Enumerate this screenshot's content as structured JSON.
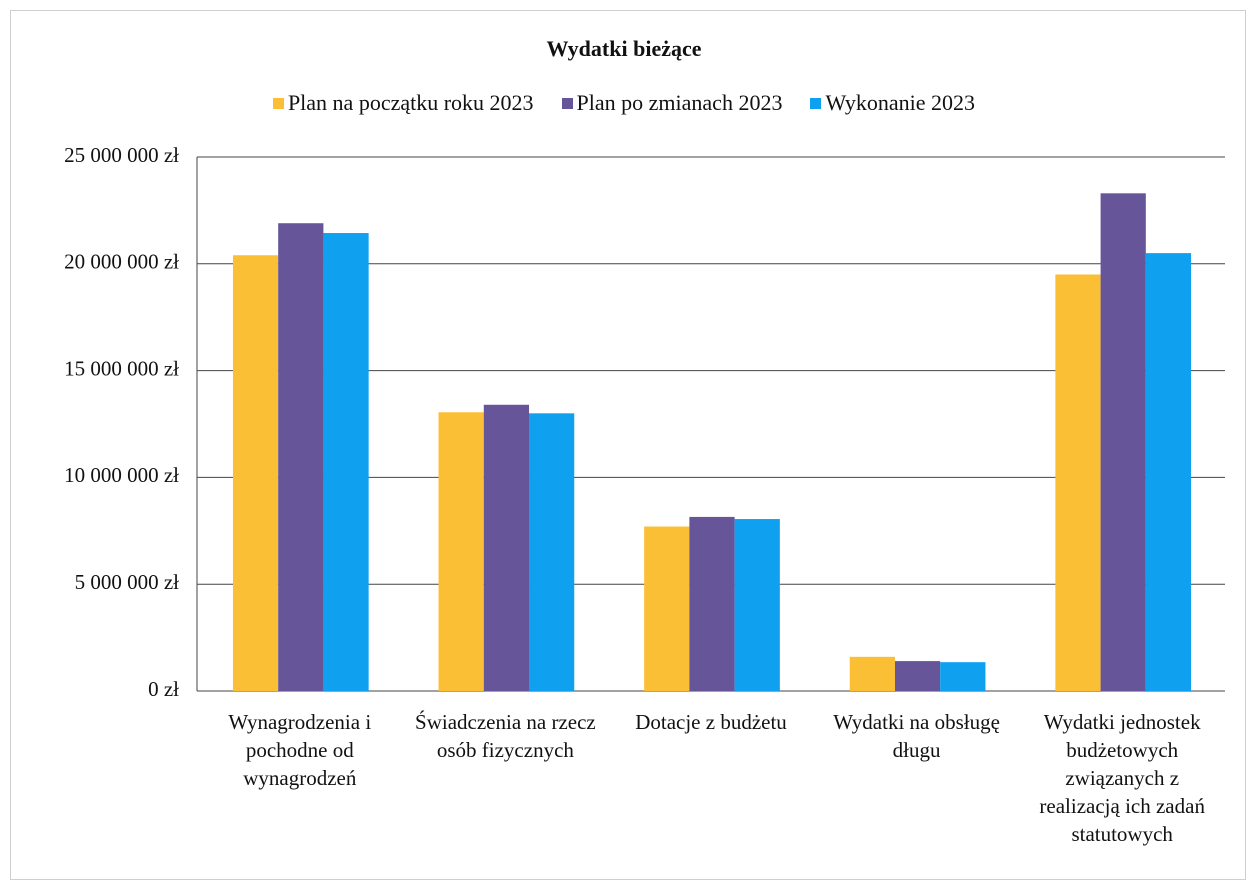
{
  "chart_data": {
    "type": "bar",
    "title": "Wydatki bieżące",
    "categories": [
      "Wynagrodzenia i pochodne od wynagrodzeń",
      "Świadczenia na rzecz osób fizycznych",
      "Dotacje z budżetu",
      "Wydatki na obsługę długu",
      "Wydatki jednostek budżetowych związanych z realizacją ich zadań statutowych"
    ],
    "series": [
      {
        "name": "Plan na początku roku 2023",
        "color": "#fbbf35",
        "values": [
          20400000,
          13050000,
          7700000,
          1600000,
          19500000
        ]
      },
      {
        "name": "Plan po zmianach 2023",
        "color": "#67559a",
        "values": [
          21900000,
          13400000,
          8150000,
          1400000,
          23300000
        ]
      },
      {
        "name": "Wykonanie 2023",
        "color": "#0fa0f0",
        "values": [
          21440000,
          13000000,
          8050000,
          1350000,
          20500000
        ]
      }
    ],
    "ylim": [
      0,
      25000000
    ],
    "yticks": [
      {
        "value": 0,
        "label": "0 zł"
      },
      {
        "value": 5000000,
        "label": "5 000 000 zł"
      },
      {
        "value": 10000000,
        "label": "10 000 000 zł"
      },
      {
        "value": 15000000,
        "label": "15 000 000 zł"
      },
      {
        "value": 20000000,
        "label": "20 000 000 zł"
      },
      {
        "value": 25000000,
        "label": "25 000 000 zł"
      }
    ],
    "grid": true,
    "legend": "top"
  }
}
